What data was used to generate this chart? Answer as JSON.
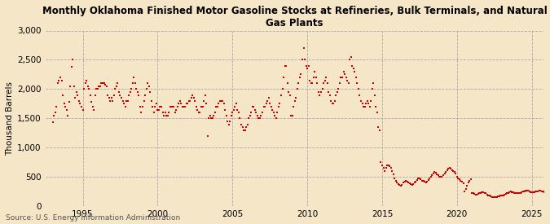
{
  "title": "Monthly Oklahoma Finished Motor Gasoline Stocks at Refineries, Bulk Terminals, and Natural\nGas Plants",
  "ylabel": "Thousand Barrels",
  "source": "Source: U.S. Energy Information Administration",
  "background_color": "#f5e6c8",
  "plot_bg_color": "#f5e6c8",
  "marker_color": "#cc0000",
  "marker_size": 4,
  "ylim": [
    0,
    3000
  ],
  "yticks": [
    0,
    500,
    1000,
    1500,
    2000,
    2500,
    3000
  ],
  "ytick_labels": [
    "0",
    "500",
    "1,000",
    "1,500",
    "2,000",
    "2,500",
    "3,000"
  ],
  "xticks": [
    1995,
    2000,
    2005,
    2010,
    2015,
    2020,
    2025
  ],
  "xlim_start": 1992.5,
  "xlim_end": 2025.8,
  "values": [
    1440,
    1550,
    1600,
    1700,
    2100,
    2150,
    2200,
    2150,
    1900,
    1750,
    1700,
    1650,
    1550,
    1780,
    2050,
    2380,
    2500,
    2050,
    1850,
    1950,
    1900,
    1800,
    1750,
    1700,
    1650,
    2000,
    2100,
    2150,
    2050,
    2000,
    1900,
    1780,
    1700,
    1650,
    1900,
    2000,
    2000,
    2050,
    2050,
    2100,
    2100,
    2100,
    2080,
    2050,
    1900,
    1850,
    1800,
    1850,
    1800,
    1900,
    2000,
    2050,
    2100,
    1950,
    1900,
    1850,
    1800,
    1750,
    1700,
    1800,
    1800,
    1900,
    1950,
    2000,
    2100,
    2200,
    2100,
    2000,
    1950,
    1900,
    1700,
    1600,
    1700,
    1800,
    1900,
    2000,
    2100,
    2050,
    1950,
    1800,
    1700,
    1600,
    1700,
    1750,
    1650,
    1650,
    1700,
    1700,
    1600,
    1550,
    1600,
    1550,
    1550,
    1600,
    1700,
    1700,
    1700,
    1700,
    1600,
    1650,
    1700,
    1750,
    1800,
    1750,
    1700,
    1700,
    1700,
    1750,
    1750,
    1800,
    1800,
    1850,
    1900,
    1850,
    1800,
    1700,
    1650,
    1600,
    1600,
    1700,
    1700,
    1800,
    1900,
    1750,
    1200,
    1500,
    1550,
    1500,
    1500,
    1550,
    1600,
    1700,
    1700,
    1750,
    1800,
    1800,
    1800,
    1750,
    1650,
    1550,
    1450,
    1400,
    1450,
    1550,
    1600,
    1650,
    1700,
    1750,
    1650,
    1600,
    1500,
    1400,
    1350,
    1300,
    1300,
    1350,
    1400,
    1500,
    1550,
    1600,
    1700,
    1700,
    1650,
    1600,
    1550,
    1500,
    1500,
    1550,
    1600,
    1700,
    1700,
    1750,
    1800,
    1850,
    1750,
    1700,
    1650,
    1600,
    1550,
    1500,
    1600,
    1700,
    1750,
    1900,
    2000,
    2200,
    2400,
    2400,
    2100,
    1950,
    1900,
    1550,
    1550,
    1700,
    1800,
    1850,
    2000,
    2100,
    2200,
    2250,
    2500,
    2700,
    2500,
    2400,
    2350,
    2400,
    2150,
    2100,
    2100,
    2200,
    2300,
    2200,
    2100,
    1950,
    1900,
    1950,
    2000,
    2100,
    2150,
    2200,
    2100,
    1950,
    1900,
    1800,
    1750,
    1750,
    1800,
    1900,
    1950,
    2000,
    2100,
    2200,
    2200,
    2300,
    2250,
    2200,
    2150,
    2100,
    2500,
    2550,
    2400,
    2350,
    2300,
    2200,
    2100,
    2000,
    1900,
    1800,
    1750,
    1700,
    1700,
    1750,
    1800,
    1750,
    1700,
    1800,
    2000,
    2100,
    1900,
    1700,
    1600,
    1350,
    1300,
    750,
    700,
    650,
    600,
    650,
    700,
    700,
    680,
    650,
    600,
    550,
    470,
    430,
    400,
    380,
    360,
    350,
    360,
    400,
    420,
    430,
    420,
    410,
    390,
    380,
    370,
    380,
    400,
    420,
    450,
    480,
    480,
    460,
    440,
    430,
    420,
    410,
    420,
    450,
    480,
    500,
    530,
    560,
    580,
    570,
    550,
    530,
    510,
    500,
    510,
    530,
    560,
    590,
    620,
    640,
    650,
    640,
    620,
    600,
    580,
    560,
    500,
    480,
    460,
    440,
    420,
    390,
    260,
    300,
    350,
    400,
    430,
    460,
    220,
    220,
    210,
    200,
    200,
    210,
    220,
    230,
    240,
    240,
    230,
    220,
    200,
    190,
    180,
    170,
    160,
    155,
    150,
    155,
    160,
    170,
    175,
    180,
    185,
    190,
    200,
    210,
    220,
    230,
    240,
    250,
    245,
    240,
    230,
    225,
    220,
    220,
    225,
    230,
    240,
    250,
    260,
    265,
    270,
    265,
    255,
    245,
    240,
    240,
    245,
    250,
    255,
    260,
    265,
    265,
    260,
    250,
    240,
    230
  ]
}
